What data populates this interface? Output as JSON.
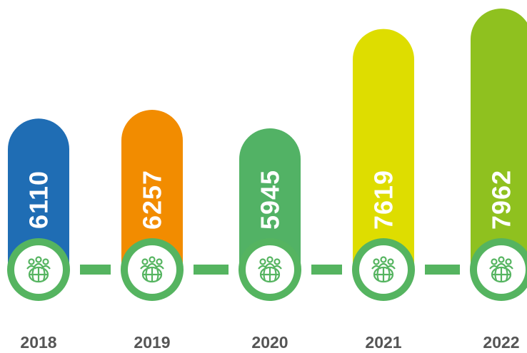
{
  "chart_data": {
    "type": "bar",
    "categories": [
      "2018",
      "2019",
      "2020",
      "2021",
      "2022"
    ],
    "values": [
      6110,
      6257,
      5945,
      7619,
      7962
    ],
    "colors": [
      "#1f6db4",
      "#f28c00",
      "#52b265",
      "#dedd00",
      "#8fc11f"
    ]
  }
}
